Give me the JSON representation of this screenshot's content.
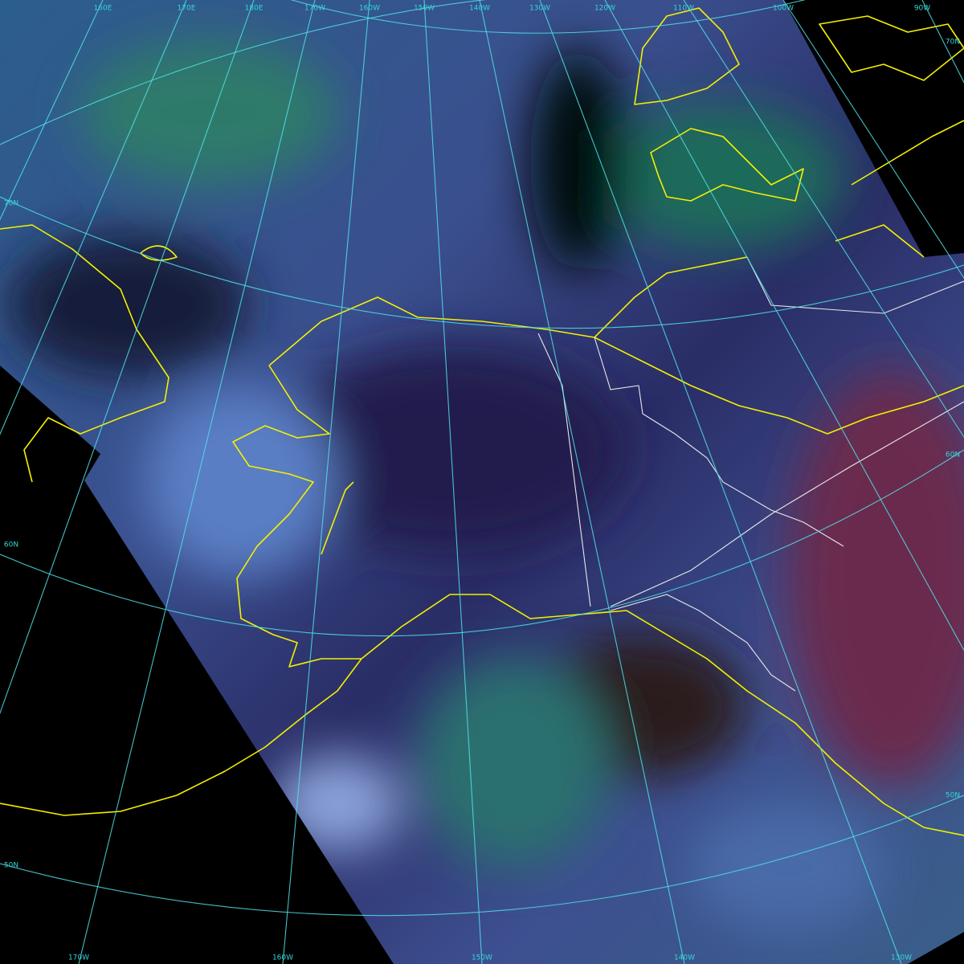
{
  "map": {
    "top_labels": [
      "160E",
      "170E",
      "180E",
      "170W",
      "160W",
      "150W",
      "140W",
      "130W",
      "120W",
      "110W",
      "100W",
      "90W"
    ],
    "left_labels": [
      "70N",
      "60N",
      "50N"
    ],
    "right_labels": [
      "70N",
      "60N",
      "50N"
    ],
    "bottom_labels": [
      "170W",
      "160W",
      "150W",
      "140W",
      "130W"
    ]
  }
}
